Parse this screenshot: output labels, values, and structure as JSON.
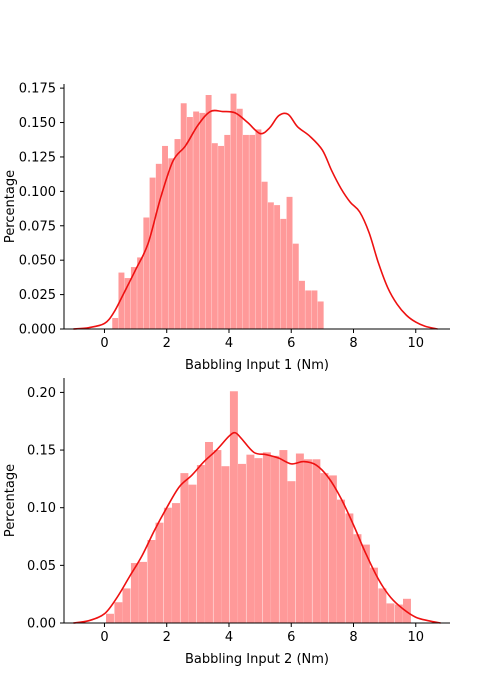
{
  "chart_data": [
    {
      "type": "bar",
      "subtype": "histogram with kde",
      "xlabel": "Babbling Input 1 (Nm)",
      "ylabel": "Percentage",
      "xlim": [
        -1.3,
        11.1
      ],
      "ylim": [
        0,
        0.178
      ],
      "xticks": [
        "0",
        "2",
        "4",
        "6",
        "8",
        "10"
      ],
      "yticks": [
        "0.000",
        "0.025",
        "0.050",
        "0.075",
        "0.100",
        "0.125",
        "0.150",
        "0.175"
      ],
      "bar_color": "#ff9999",
      "line_color": "#ee1111",
      "bin_width": 0.2,
      "bins": [
        {
          "x0": 0.25,
          "value": 0.008
        },
        {
          "x0": 0.45,
          "value": 0.041
        },
        {
          "x0": 0.65,
          "value": 0.037
        },
        {
          "x0": 0.85,
          "value": 0.045
        },
        {
          "x0": 1.05,
          "value": 0.052
        },
        {
          "x0": 1.25,
          "value": 0.081
        },
        {
          "x0": 1.45,
          "value": 0.11
        },
        {
          "x0": 1.65,
          "value": 0.12
        },
        {
          "x0": 1.85,
          "value": 0.133
        },
        {
          "x0": 2.05,
          "value": 0.124
        },
        {
          "x0": 2.25,
          "value": 0.138
        },
        {
          "x0": 2.45,
          "value": 0.164
        },
        {
          "x0": 2.65,
          "value": 0.154
        },
        {
          "x0": 2.85,
          "value": 0.158
        },
        {
          "x0": 3.05,
          "value": 0.157
        },
        {
          "x0": 3.25,
          "value": 0.17
        },
        {
          "x0": 3.45,
          "value": 0.135
        },
        {
          "x0": 3.65,
          "value": 0.133
        },
        {
          "x0": 3.85,
          "value": 0.141
        },
        {
          "x0": 4.05,
          "value": 0.171
        },
        {
          "x0": 4.25,
          "value": 0.16
        },
        {
          "x0": 4.45,
          "value": 0.141
        },
        {
          "x0": 4.65,
          "value": 0.141
        },
        {
          "x0": 4.85,
          "value": 0.145
        },
        {
          "x0": 5.05,
          "value": 0.107
        },
        {
          "x0": 5.25,
          "value": 0.092
        },
        {
          "x0": 5.45,
          "value": 0.09
        },
        {
          "x0": 5.65,
          "value": 0.08
        },
        {
          "x0": 5.85,
          "value": 0.096
        },
        {
          "x0": 6.05,
          "value": 0.062
        },
        {
          "x0": 6.25,
          "value": 0.035
        },
        {
          "x0": 6.45,
          "value": 0.028
        },
        {
          "x0": 6.65,
          "value": 0.028
        },
        {
          "x0": 6.85,
          "value": 0.02
        }
      ],
      "kde": {
        "x": [
          -1.0,
          -0.5,
          0.0,
          0.3,
          0.6,
          1.0,
          1.4,
          1.8,
          2.2,
          2.6,
          3.0,
          3.4,
          3.8,
          4.2,
          4.6,
          5.0,
          5.3,
          5.6,
          5.9,
          6.2,
          6.6,
          7.0,
          7.3,
          7.6,
          7.9,
          8.2,
          8.5,
          8.8,
          9.1,
          9.4,
          9.7,
          10.0,
          10.3,
          10.7
        ],
        "y": [
          0.0,
          0.001,
          0.004,
          0.012,
          0.025,
          0.043,
          0.062,
          0.095,
          0.122,
          0.133,
          0.148,
          0.158,
          0.158,
          0.157,
          0.15,
          0.142,
          0.146,
          0.155,
          0.156,
          0.147,
          0.14,
          0.13,
          0.115,
          0.102,
          0.092,
          0.085,
          0.07,
          0.048,
          0.03,
          0.018,
          0.01,
          0.005,
          0.002,
          0.0
        ]
      }
    },
    {
      "type": "bar",
      "subtype": "histogram with kde",
      "xlabel": "Babbling Input 2 (Nm)",
      "ylabel": "Percentage",
      "xlim": [
        -1.3,
        11.1
      ],
      "ylim": [
        0,
        0.2125
      ],
      "xticks": [
        "0",
        "2",
        "4",
        "6",
        "8",
        "10"
      ],
      "yticks": [
        "0.00",
        "0.05",
        "0.10",
        "0.15",
        "0.20"
      ],
      "bar_color": "#ff9999",
      "line_color": "#ee1111",
      "bin_width": 0.265,
      "bins": [
        {
          "x0": 0.05,
          "value": 0.008
        },
        {
          "x0": 0.32,
          "value": 0.018
        },
        {
          "x0": 0.58,
          "value": 0.03
        },
        {
          "x0": 0.85,
          "value": 0.052
        },
        {
          "x0": 1.11,
          "value": 0.053
        },
        {
          "x0": 1.38,
          "value": 0.072
        },
        {
          "x0": 1.64,
          "value": 0.087
        },
        {
          "x0": 1.91,
          "value": 0.1
        },
        {
          "x0": 2.17,
          "value": 0.104
        },
        {
          "x0": 2.44,
          "value": 0.13
        },
        {
          "x0": 2.7,
          "value": 0.12
        },
        {
          "x0": 2.97,
          "value": 0.137
        },
        {
          "x0": 3.23,
          "value": 0.157
        },
        {
          "x0": 3.5,
          "value": 0.15
        },
        {
          "x0": 3.76,
          "value": 0.136
        },
        {
          "x0": 4.03,
          "value": 0.201
        },
        {
          "x0": 4.29,
          "value": 0.138
        },
        {
          "x0": 4.56,
          "value": 0.146
        },
        {
          "x0": 4.82,
          "value": 0.143
        },
        {
          "x0": 5.09,
          "value": 0.148
        },
        {
          "x0": 5.35,
          "value": 0.145
        },
        {
          "x0": 5.62,
          "value": 0.15
        },
        {
          "x0": 5.88,
          "value": 0.123
        },
        {
          "x0": 6.15,
          "value": 0.147
        },
        {
          "x0": 6.41,
          "value": 0.142
        },
        {
          "x0": 6.68,
          "value": 0.142
        },
        {
          "x0": 6.94,
          "value": 0.13
        },
        {
          "x0": 7.21,
          "value": 0.128
        },
        {
          "x0": 7.47,
          "value": 0.107
        },
        {
          "x0": 7.74,
          "value": 0.095
        },
        {
          "x0": 8.0,
          "value": 0.077
        },
        {
          "x0": 8.27,
          "value": 0.068
        },
        {
          "x0": 8.53,
          "value": 0.048
        },
        {
          "x0": 8.8,
          "value": 0.03
        },
        {
          "x0": 9.06,
          "value": 0.017
        },
        {
          "x0": 9.33,
          "value": 0.016
        },
        {
          "x0": 9.59,
          "value": 0.021
        }
      ],
      "kde": {
        "x": [
          -1.0,
          -0.5,
          0.0,
          0.4,
          0.8,
          1.2,
          1.6,
          2.0,
          2.4,
          2.8,
          3.2,
          3.6,
          4.0,
          4.2,
          4.4,
          4.8,
          5.2,
          5.6,
          6.0,
          6.4,
          6.8,
          7.2,
          7.6,
          8.0,
          8.4,
          8.8,
          9.2,
          9.6,
          10.0,
          10.4,
          10.8
        ],
        "y": [
          0.0,
          0.002,
          0.008,
          0.022,
          0.04,
          0.058,
          0.08,
          0.1,
          0.118,
          0.128,
          0.14,
          0.15,
          0.162,
          0.165,
          0.16,
          0.148,
          0.146,
          0.143,
          0.138,
          0.14,
          0.137,
          0.126,
          0.108,
          0.085,
          0.06,
          0.038,
          0.022,
          0.012,
          0.005,
          0.002,
          0.0
        ]
      }
    }
  ]
}
